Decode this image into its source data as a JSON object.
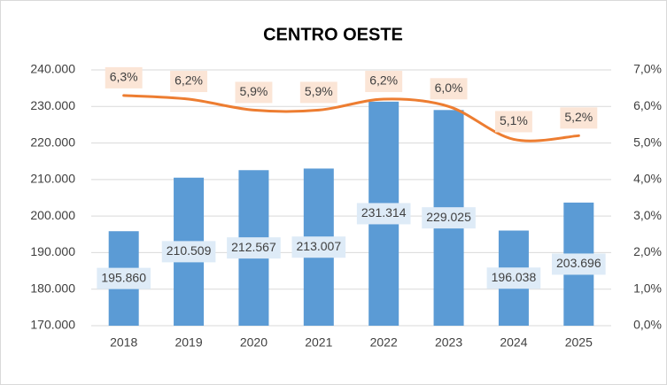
{
  "chart_data": {
    "type": "bar",
    "title": "CENTRO OESTE",
    "categories": [
      "2018",
      "2019",
      "2020",
      "2021",
      "2022",
      "2023",
      "2024",
      "2025"
    ],
    "series": [
      {
        "type": "bar",
        "color": "#5b9bd5",
        "values": [
          195860,
          210509,
          212567,
          213007,
          231314,
          229025,
          196038,
          203696
        ],
        "value_labels": [
          "195.860",
          "210.509",
          "212.567",
          "213.007",
          "231.314",
          "229.025",
          "196.038",
          "203.696"
        ]
      },
      {
        "type": "line",
        "color": "#ed7d31",
        "axis": "y2",
        "values": [
          6.3,
          6.2,
          5.9,
          5.9,
          6.2,
          6.0,
          5.1,
          5.2
        ],
        "value_labels": [
          "6,3%",
          "6,2%",
          "5,9%",
          "5,9%",
          "6,2%",
          "6,0%",
          "5,1%",
          "5,2%"
        ]
      }
    ],
    "ylim": [
      170000,
      240000
    ],
    "yticks": [
      {
        "value": 170000,
        "label": "170.000"
      },
      {
        "value": 180000,
        "label": "180.000"
      },
      {
        "value": 190000,
        "label": "190.000"
      },
      {
        "value": 200000,
        "label": "200.000"
      },
      {
        "value": 210000,
        "label": "210.000"
      },
      {
        "value": 220000,
        "label": "220.000"
      },
      {
        "value": 230000,
        "label": "230.000"
      },
      {
        "value": 240000,
        "label": "240.000"
      }
    ],
    "y2lim": [
      0,
      7
    ],
    "y2ticks": [
      {
        "value": 0,
        "label": "0,0%"
      },
      {
        "value": 1,
        "label": "1,0%"
      },
      {
        "value": 2,
        "label": "2,0%"
      },
      {
        "value": 3,
        "label": "3,0%"
      },
      {
        "value": 4,
        "label": "4,0%"
      },
      {
        "value": 5,
        "label": "5,0%"
      },
      {
        "value": 6,
        "label": "6,0%"
      },
      {
        "value": 7,
        "label": "7,0%"
      }
    ],
    "grid": true
  }
}
